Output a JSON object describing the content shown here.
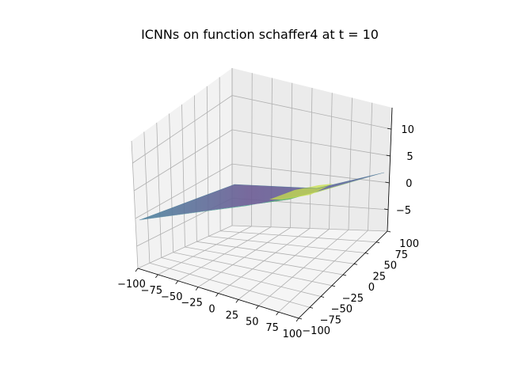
{
  "chart_data": {
    "type": "surface",
    "title": "ICNNs on function schaffer4 at t = 10",
    "x_ticks": [
      "−100",
      "−75",
      "−50",
      "−25",
      "0",
      "25",
      "50",
      "75",
      "100"
    ],
    "y_ticks": [
      "−100",
      "−75",
      "−50",
      "−25",
      "0",
      "25",
      "50",
      "75",
      "100"
    ],
    "z_ticks": [
      "−5",
      "0",
      "5",
      "10"
    ],
    "xlim": [
      -100,
      100
    ],
    "ylim": [
      -100,
      100
    ],
    "zlim": [
      -9,
      14
    ],
    "colormap": "viridis",
    "grid": true,
    "surface_corners": {
      "x_min_y_min": 0,
      "x_max_y_min": -8,
      "x_min_y_max": 10,
      "x_max_y_max": 0
    },
    "colors": {
      "pane_left": "#f2f2f2",
      "pane_back": "#ebebeb",
      "pane_floor": "#f5f5f5",
      "surface_low": "#5a3a78",
      "surface_mid": "#3b8a8c",
      "surface_high": "#c8e04a"
    }
  }
}
